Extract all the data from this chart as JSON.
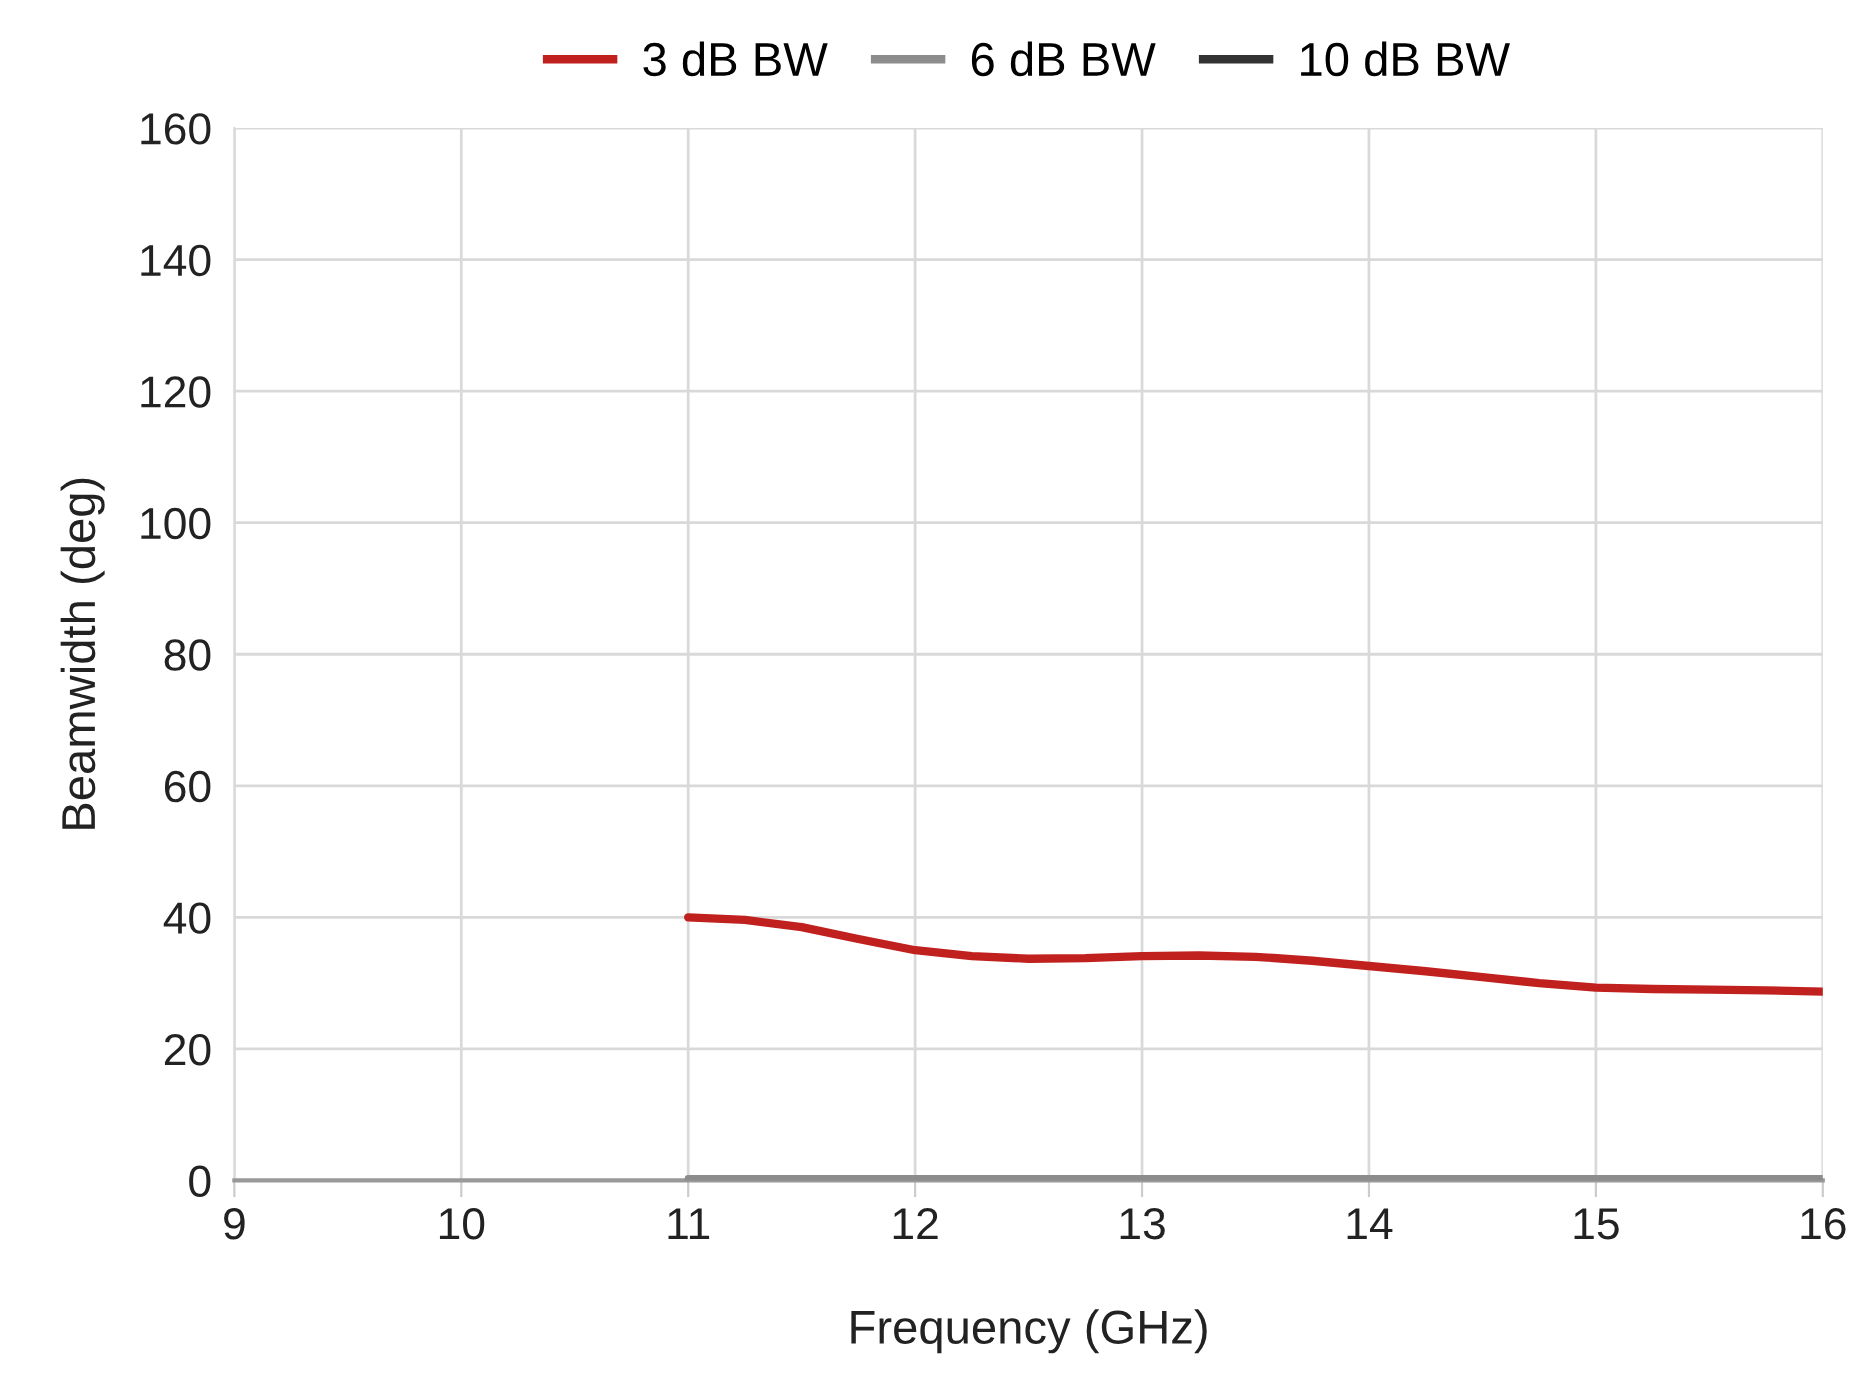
{
  "chart_data": {
    "type": "line",
    "xlabel": "Frequency (GHz)",
    "ylabel": "Beamwidth (deg)",
    "x": [
      11,
      11.25,
      11.5,
      11.75,
      12,
      12.25,
      12.5,
      12.75,
      13,
      13.25,
      13.5,
      13.75,
      14,
      14.25,
      14.5,
      14.75,
      15,
      15.25,
      15.5,
      15.75,
      16
    ],
    "series": [
      {
        "name": "3 dB BW",
        "color": "#c0201e",
        "values": [
          40,
          39.6,
          38.5,
          36.7,
          35.0,
          34.1,
          33.7,
          33.8,
          34.1,
          34.2,
          34.0,
          33.4,
          32.6,
          31.8,
          30.9,
          30.0,
          29.3,
          29.1,
          29.0,
          28.9,
          28.7
        ]
      },
      {
        "name": "6 dB BW",
        "color": "#8c8c8c",
        "values": [
          0.3,
          0.3,
          0.3,
          0.3,
          0.3,
          0.3,
          0.3,
          0.3,
          0.3,
          0.3,
          0.3,
          0.3,
          0.3,
          0.3,
          0.3,
          0.3,
          0.3,
          0.3,
          0.3,
          0.3,
          0.3
        ]
      },
      {
        "name": "10 dB BW",
        "color": "#333333",
        "values": [
          null,
          null,
          null,
          null,
          null,
          null,
          null,
          null,
          null,
          null,
          null,
          null,
          null,
          null,
          null,
          null,
          null,
          null,
          null,
          null,
          null
        ]
      }
    ],
    "xlim": [
      9,
      16
    ],
    "xticks": [
      9,
      10,
      11,
      12,
      13,
      14,
      15,
      16
    ],
    "ylim": [
      0,
      160
    ],
    "yticks": [
      0,
      20,
      40,
      60,
      80,
      100,
      120,
      140,
      160
    ],
    "grid": true,
    "legend": "top",
    "marker": "none",
    "line_style": "solid"
  }
}
